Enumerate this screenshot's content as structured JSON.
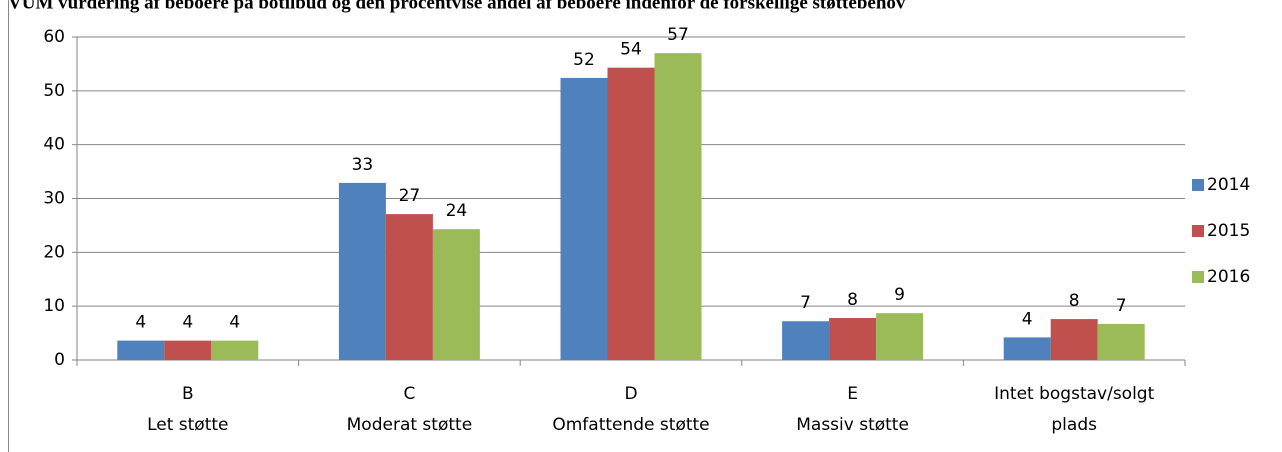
{
  "chart_data": {
    "type": "bar",
    "title": "VUM vurdering af beboere på botilbud og den procentvise andel af beboere indenfor de forskellige støttebehov",
    "categories": [
      [
        "B",
        "Let støtte"
      ],
      [
        "C",
        "Moderat støtte"
      ],
      [
        "D",
        "Omfattende støtte"
      ],
      [
        "E",
        "Massiv støtte"
      ],
      [
        "Intet bogstav/solgt",
        "plads"
      ]
    ],
    "series": [
      {
        "name": "2014",
        "color": "#4f81bd",
        "values": [
          3.6,
          32.9,
          52.4,
          7.2,
          4.2
        ],
        "value_labels": [
          "4",
          "33",
          "52",
          "7",
          "4"
        ]
      },
      {
        "name": "2015",
        "color": "#c0504d",
        "values": [
          3.6,
          27.1,
          54.3,
          7.8,
          7.6
        ],
        "value_labels": [
          "4",
          "27",
          "54",
          "8",
          "8"
        ]
      },
      {
        "name": "2016",
        "color": "#9bbb59",
        "values": [
          3.6,
          24.3,
          57.0,
          8.7,
          6.7
        ],
        "value_labels": [
          "4",
          "24",
          "57",
          "9",
          "7"
        ]
      }
    ],
    "ylim": [
      0,
      60
    ],
    "yticks": [
      0,
      10,
      20,
      30,
      40,
      50,
      60
    ],
    "grid": true,
    "legend": "right"
  }
}
